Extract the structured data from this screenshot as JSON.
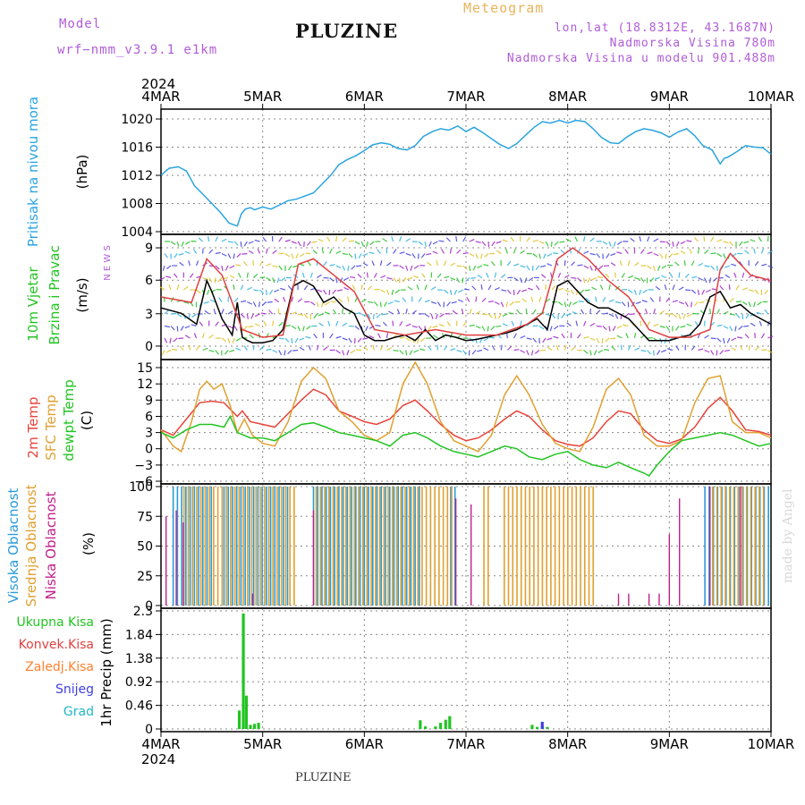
{
  "header": {
    "model_label": "Model",
    "model_name": "wrf−nmm_v3.9.1  e1km",
    "station": "PLUZINE",
    "meteogram_label": "Meteogram",
    "coords": "lon,lat (18.8312E, 43.1687N)",
    "elevation": "Nadmorska Visina 780m",
    "model_elevation": "Nadmorska Visina u modelu 901.488m"
  },
  "footer": {
    "station": "PLUZINE",
    "watermark": "made by Angel"
  },
  "colors": {
    "pressure": "#2aa4e0",
    "speed": "#000000",
    "gust": "#e04040",
    "temp2m": "#e8433a",
    "sfc": "#e0a030",
    "dewpt": "#22c422",
    "high_cloud": "#2a9ad8",
    "mid_cloud": "#e0a030",
    "low_cloud": "#c0208a",
    "total_precip": "#22c422",
    "conv_precip": "#e04040",
    "frz_precip": "#ff8030",
    "snow": "#4040e0",
    "graupel": "#20b8c8"
  },
  "chart_data": {
    "type": "line",
    "time_axis": {
      "year": "2024",
      "ticks": [
        "4MAR",
        "5MAR",
        "6MAR",
        "7MAR",
        "8MAR",
        "9MAR",
        "10MAR"
      ],
      "range_days": [
        0,
        6
      ]
    },
    "panels": [
      {
        "id": "pressure",
        "ylabel": [
          "Pritisak na nivou mora",
          "(hPa)"
        ],
        "ylim": [
          1004,
          1021
        ],
        "yticks": [
          "1004",
          "1008",
          "1012",
          "1016",
          "1020"
        ],
        "series": [
          {
            "name": "Pritisak na nivou mora",
            "color": "#2aa4e0",
            "x": [
              0,
              0.08,
              0.17,
              0.25,
              0.33,
              0.42,
              0.5,
              0.58,
              0.67,
              0.75,
              0.79,
              0.83,
              0.88,
              0.92,
              1.0,
              1.08,
              1.17,
              1.25,
              1.33,
              1.5,
              1.67,
              1.75,
              1.83,
              1.92,
              2.0,
              2.08,
              2.17,
              2.25,
              2.33,
              2.42,
              2.5,
              2.58,
              2.67,
              2.75,
              2.83,
              2.92,
              3.0,
              3.08,
              3.17,
              3.25,
              3.33,
              3.42,
              3.5,
              3.58,
              3.67,
              3.75,
              3.83,
              3.92,
              4.0,
              4.08,
              4.17,
              4.25,
              4.33,
              4.42,
              4.5,
              4.58,
              4.67,
              4.75,
              4.83,
              4.92,
              5.0,
              5.08,
              5.17,
              5.25,
              5.33,
              5.42,
              5.5,
              5.54,
              5.58,
              5.67,
              5.75,
              5.83,
              5.92,
              6.0
            ],
            "y": [
              1012.0,
              1013.0,
              1013.2,
              1012.6,
              1010.5,
              1009.2,
              1008.0,
              1006.8,
              1005.2,
              1004.8,
              1006.5,
              1007.2,
              1007.4,
              1007.1,
              1007.5,
              1007.2,
              1007.8,
              1008.4,
              1008.6,
              1009.5,
              1012.0,
              1013.5,
              1014.2,
              1014.8,
              1015.5,
              1016.3,
              1016.6,
              1016.4,
              1015.8,
              1015.6,
              1016.2,
              1017.5,
              1018.2,
              1018.6,
              1018.4,
              1019.0,
              1018.2,
              1018.8,
              1018.0,
              1017.2,
              1016.4,
              1015.8,
              1016.5,
              1017.6,
              1018.8,
              1019.6,
              1019.4,
              1019.8,
              1019.4,
              1019.8,
              1019.6,
              1018.6,
              1017.4,
              1016.6,
              1016.5,
              1017.4,
              1018.2,
              1018.6,
              1018.4,
              1018.0,
              1017.4,
              1018.1,
              1018.6,
              1017.6,
              1016.2,
              1015.6,
              1013.6,
              1014.4,
              1014.6,
              1015.4,
              1016.2,
              1016.0,
              1015.9,
              1015.0
            ]
          }
        ]
      },
      {
        "id": "wind",
        "ylabel": [
          "10m Vjetar",
          "Brzina i Pravac",
          "(m/s)"
        ],
        "ylim": [
          -1,
          10
        ],
        "yticks": [
          "0",
          "3",
          "6",
          "9"
        ],
        "direction_key": "N  E  W  S",
        "series": [
          {
            "name": "speed",
            "color": "#000000",
            "x": [
              0,
              0.2,
              0.35,
              0.45,
              0.5,
              0.6,
              0.7,
              0.75,
              0.8,
              0.85,
              0.9,
              1.0,
              1.1,
              1.2,
              1.3,
              1.4,
              1.5,
              1.6,
              1.7,
              1.8,
              1.9,
              2.0,
              2.1,
              2.2,
              2.3,
              2.4,
              2.5,
              2.6,
              2.7,
              2.8,
              2.9,
              3.0,
              3.1,
              3.2,
              3.3,
              3.4,
              3.5,
              3.6,
              3.7,
              3.8,
              3.9,
              4.0,
              4.1,
              4.2,
              4.3,
              4.4,
              4.5,
              4.6,
              4.7,
              4.8,
              4.9,
              5.0,
              5.1,
              5.2,
              5.3,
              5.4,
              5.5,
              5.6,
              5.7,
              5.8,
              5.9,
              6.0
            ],
            "y": [
              3.5,
              3.0,
              2.0,
              6.0,
              5.0,
              2.5,
              1.0,
              4.0,
              0.8,
              0.5,
              0.3,
              0.3,
              0.5,
              1.5,
              5.5,
              6.0,
              5.5,
              4.0,
              4.5,
              3.5,
              3.0,
              1.0,
              0.5,
              0.5,
              0.8,
              1.0,
              0.5,
              1.5,
              0.5,
              1.0,
              0.8,
              0.5,
              0.6,
              0.8,
              1.0,
              1.2,
              1.5,
              2.0,
              2.5,
              1.5,
              5.5,
              6.0,
              5.0,
              4.0,
              3.5,
              3.5,
              3.0,
              2.5,
              1.5,
              0.5,
              0.5,
              0.5,
              0.8,
              1.0,
              2.0,
              4.5,
              5.0,
              3.5,
              3.8,
              3.0,
              2.5,
              2.0
            ]
          },
          {
            "name": "gust",
            "color": "#e04040",
            "x": [
              0,
              0.3,
              0.45,
              0.6,
              0.8,
              1.0,
              1.2,
              1.35,
              1.5,
              1.7,
              1.9,
              2.1,
              2.4,
              2.7,
              3.0,
              3.3,
              3.6,
              3.75,
              3.9,
              4.05,
              4.2,
              4.4,
              4.6,
              4.8,
              5.0,
              5.2,
              5.4,
              5.5,
              5.6,
              5.8,
              6.0
            ],
            "y": [
              4.5,
              4.0,
              8.0,
              6.5,
              1.5,
              0.8,
              1.0,
              7.5,
              8.0,
              6.5,
              5.0,
              1.5,
              1.0,
              1.5,
              1.0,
              1.0,
              2.0,
              3.0,
              8.0,
              9.0,
              8.0,
              6.0,
              4.5,
              1.5,
              0.8,
              0.8,
              1.5,
              7.0,
              8.5,
              6.5,
              6.0
            ]
          }
        ]
      },
      {
        "id": "temperature",
        "ylabel": [
          "2m Temp",
          "SFC Temp",
          "dewpt Temp",
          "(C)"
        ],
        "ylim": [
          -6,
          16
        ],
        "yticks": [
          "−6",
          "−3",
          "0",
          "3",
          "6",
          "9",
          "12",
          "15"
        ],
        "series": [
          {
            "name": "2m Temp",
            "color": "#e8433a",
            "x": [
              0,
              0.12,
              0.25,
              0.38,
              0.5,
              0.62,
              0.75,
              0.8,
              0.88,
              1.0,
              1.12,
              1.25,
              1.38,
              1.5,
              1.62,
              1.75,
              1.88,
              2.0,
              2.12,
              2.25,
              2.38,
              2.5,
              2.62,
              2.75,
              2.88,
              3.0,
              3.12,
              3.25,
              3.38,
              3.5,
              3.62,
              3.75,
              3.88,
              4.0,
              4.12,
              4.25,
              4.38,
              4.5,
              4.62,
              4.75,
              4.88,
              5.0,
              5.12,
              5.25,
              5.38,
              5.5,
              5.62,
              5.75,
              5.88,
              6.0
            ],
            "y": [
              3.5,
              2.5,
              5.5,
              8.5,
              8.8,
              8.5,
              6.0,
              7.0,
              5.0,
              4.5,
              4.0,
              6.5,
              9.0,
              11.0,
              10.0,
              7.0,
              6.0,
              5.0,
              4.5,
              5.5,
              8.0,
              9.0,
              7.0,
              4.5,
              2.5,
              1.5,
              2.0,
              3.5,
              5.5,
              7.0,
              6.0,
              3.5,
              1.5,
              0.8,
              0.5,
              2.0,
              5.0,
              7.0,
              6.5,
              3.5,
              1.5,
              1.0,
              1.8,
              4.0,
              7.5,
              9.5,
              7.0,
              3.5,
              3.2,
              2.5
            ]
          },
          {
            "name": "SFC Temp",
            "color": "#e0a030",
            "x": [
              0,
              0.12,
              0.2,
              0.3,
              0.38,
              0.45,
              0.52,
              0.6,
              0.68,
              0.75,
              0.82,
              0.9,
              1.0,
              1.12,
              1.25,
              1.38,
              1.5,
              1.62,
              1.75,
              1.88,
              2.0,
              2.12,
              2.25,
              2.38,
              2.5,
              2.62,
              2.75,
              2.88,
              3.0,
              3.12,
              3.25,
              3.38,
              3.5,
              3.62,
              3.75,
              3.88,
              4.0,
              4.12,
              4.25,
              4.38,
              4.5,
              4.62,
              4.75,
              4.88,
              5.0,
              5.12,
              5.25,
              5.38,
              5.5,
              5.62,
              5.75,
              5.88,
              6.0
            ],
            "y": [
              3.5,
              0.5,
              -0.5,
              5.0,
              11.0,
              12.5,
              11.0,
              12.0,
              8.0,
              3.0,
              5.5,
              2.5,
              1.0,
              0.5,
              5.0,
              12.5,
              15.0,
              13.0,
              7.0,
              5.0,
              2.5,
              1.5,
              3.0,
              12.0,
              16.0,
              12.0,
              5.0,
              1.5,
              0.5,
              -0.5,
              2.5,
              10.0,
              13.5,
              10.0,
              4.5,
              1.0,
              0.0,
              -0.5,
              4.0,
              11.0,
              13.0,
              10.0,
              2.5,
              0.5,
              0.5,
              1.5,
              8.5,
              13.0,
              13.5,
              5.0,
              3.0,
              3.0,
              2.0
            ]
          },
          {
            "name": "dewpt Temp",
            "color": "#22c422",
            "x": [
              0,
              0.12,
              0.25,
              0.38,
              0.5,
              0.62,
              0.68,
              0.75,
              0.88,
              1.0,
              1.12,
              1.25,
              1.38,
              1.5,
              1.62,
              1.75,
              1.88,
              2.0,
              2.12,
              2.25,
              2.38,
              2.5,
              2.62,
              2.75,
              2.88,
              3.0,
              3.12,
              3.25,
              3.38,
              3.5,
              3.62,
              3.75,
              3.88,
              4.0,
              4.12,
              4.25,
              4.38,
              4.5,
              4.62,
              4.75,
              4.8,
              4.88,
              5.0,
              5.12,
              5.25,
              5.38,
              5.5,
              5.62,
              5.75,
              5.88,
              6.0
            ],
            "y": [
              3.0,
              2.0,
              3.5,
              4.5,
              4.5,
              4.0,
              6.0,
              3.0,
              2.0,
              2.0,
              1.5,
              3.0,
              4.5,
              4.8,
              4.0,
              3.0,
              2.5,
              2.0,
              1.5,
              0.5,
              2.5,
              3.0,
              2.0,
              0.5,
              -0.5,
              -1.0,
              -1.5,
              -0.5,
              0.5,
              0.0,
              -1.5,
              -2.0,
              -1.0,
              -0.5,
              -2.0,
              -3.0,
              -3.5,
              -2.5,
              -3.5,
              -4.5,
              -5.0,
              -3.0,
              -0.5,
              1.5,
              2.0,
              2.5,
              3.0,
              2.5,
              1.5,
              0.5,
              1.0
            ]
          }
        ]
      },
      {
        "id": "clouds",
        "ylabel": [
          "Visoka Oblacnost",
          "Srednja Oblacnost",
          "Niska Oblacnost",
          "(%)"
        ],
        "ylim": [
          0,
          100
        ],
        "yticks": [
          "0",
          "25",
          "50",
          "75",
          "100"
        ],
        "series": [
          {
            "name": "Visoka Oblacnost",
            "color": "#2a9ad8",
            "ranges_days": [
              [
                0.12,
                0.5
              ],
              [
                0.62,
                1.25
              ],
              [
                1.5,
                2.55
              ],
              [
                2.85,
                2.9
              ],
              [
                5.35,
                6.0
              ]
            ],
            "value": 100
          },
          {
            "name": "Srednja Oblacnost",
            "color": "#e0a030",
            "ranges_days": [
              [
                0.2,
                1.3
              ],
              [
                1.5,
                2.85
              ],
              [
                3.15,
                3.2
              ],
              [
                3.35,
                4.25
              ],
              [
                5.4,
                5.9
              ]
            ],
            "value": 100
          },
          {
            "name": "Niska Oblacnost",
            "color": "#c0208a",
            "spikes": [
              [
                0.05,
                75
              ],
              [
                0.15,
                80
              ],
              [
                0.22,
                70
              ],
              [
                0.9,
                10
              ],
              [
                1.5,
                80
              ],
              [
                2.9,
                90
              ],
              [
                3.05,
                85
              ],
              [
                4.5,
                10
              ],
              [
                4.6,
                10
              ],
              [
                4.8,
                10
              ],
              [
                4.9,
                10
              ],
              [
                5.0,
                60
              ],
              [
                5.1,
                90
              ],
              [
                5.4,
                100
              ],
              [
                5.7,
                100
              ]
            ]
          }
        ]
      },
      {
        "id": "precip",
        "ylabel": [
          "1hr Precip (mm)"
        ],
        "ylim": [
          0,
          2.3
        ],
        "yticks": [
          "0",
          "0.46",
          "0.92",
          "1.38",
          "1.84",
          "2.3"
        ],
        "legend": [
          "Ukupna Kisa",
          "Konvek.Kisa",
          "Zaledj.Kisa",
          "Snijeg",
          "Grad"
        ],
        "series": [
          {
            "name": "Ukupna Kisa",
            "color": "#22c422",
            "x": [
              0.77,
              0.81,
              0.84,
              0.88,
              0.92,
              0.96,
              2.55,
              2.6,
              2.7,
              2.75,
              2.8,
              2.84,
              3.65,
              3.7,
              3.75,
              3.8
            ],
            "y": [
              0.36,
              2.25,
              0.65,
              0.08,
              0.1,
              0.12,
              0.17,
              0.05,
              0.05,
              0.12,
              0.18,
              0.25,
              0.08,
              0.04,
              0.05,
              0.04
            ]
          },
          {
            "name": "Snijeg",
            "color": "#4040e0",
            "x": [
              3.75
            ],
            "y": [
              0.14
            ]
          }
        ]
      }
    ]
  }
}
